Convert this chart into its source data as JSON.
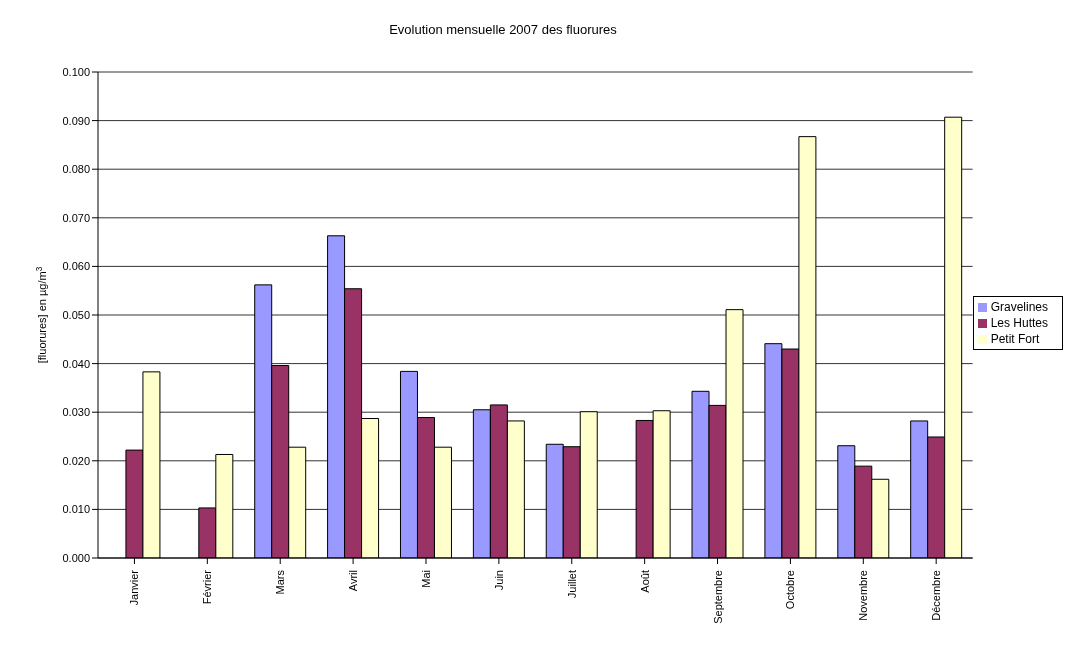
{
  "chart_data": {
    "type": "bar",
    "title": "Evolution mensuelle 2007 des fluorures",
    "ylabel": "[fluorures] en µg/m$^{3}$",
    "categories": [
      "Janvier",
      "Février",
      "Mars",
      "Avril",
      "Mai",
      "Juin",
      "Juillet",
      "Août",
      "Septembre",
      "Octobre",
      "Novembre",
      "Décembre"
    ],
    "series": [
      {
        "name": "Gravelines",
        "color": "#9999ff",
        "values": [
          null,
          null,
          0.0562,
          0.0663,
          0.0384,
          0.0305,
          0.0234,
          null,
          0.0343,
          0.0441,
          0.0231,
          0.0282
        ]
      },
      {
        "name": "Les Huttes",
        "color": "#993366",
        "values": [
          0.0222,
          0.0103,
          0.0396,
          0.0554,
          0.0289,
          0.0315,
          0.0229,
          0.0283,
          0.0314,
          0.043,
          0.0189,
          0.0249
        ]
      },
      {
        "name": "Petit Fort",
        "color": "#ffffcc",
        "values": [
          0.0383,
          0.0213,
          0.0228,
          0.0287,
          0.0228,
          0.0282,
          0.0301,
          0.0303,
          0.0511,
          0.0867,
          0.0162,
          0.0907
        ]
      }
    ],
    "ylim": [
      0,
      0.1
    ],
    "yticks": [
      {
        "value": 0,
        "label": "0.000"
      },
      {
        "value": 0.01,
        "label": "0.010"
      },
      {
        "value": 0.02,
        "label": "0.020"
      },
      {
        "value": 0.03,
        "label": "0.030"
      },
      {
        "value": 0.04,
        "label": "0.040"
      },
      {
        "value": 0.05,
        "label": "0.050"
      },
      {
        "value": 0.06,
        "label": "0.060"
      },
      {
        "value": 0.07,
        "label": "0.070"
      },
      {
        "value": 0.08,
        "label": "0.080"
      },
      {
        "value": 0.09,
        "label": "0.090"
      },
      {
        "value": 0.1,
        "label": "0.100"
      }
    ],
    "grid": "y",
    "legend": "right"
  }
}
